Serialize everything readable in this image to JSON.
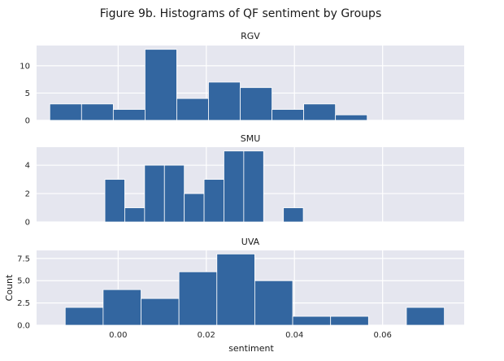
{
  "figure": {
    "title": "Figure 9b. Histograms of QF sentiment by Groups",
    "xlabel": "sentiment",
    "ylabel": "Count"
  },
  "style": {
    "bar_color": "#3366a0",
    "panel_bg": "#e5e6ef",
    "grid_color": "#ffffff"
  },
  "chart_data": [
    {
      "type": "bar",
      "subtitle": "RGV",
      "xlim": [
        -0.0185,
        0.0785
      ],
      "ylim": [
        0,
        13.7
      ],
      "yticks": [
        0,
        5,
        10
      ],
      "ytick_labels": [
        "0",
        "5",
        "10"
      ],
      "bins": [
        {
          "x0": -0.0155,
          "x1": -0.0083,
          "count": 3
        },
        {
          "x0": -0.0083,
          "x1": -0.0011,
          "count": 3
        },
        {
          "x0": -0.0011,
          "x1": 0.0061,
          "count": 2
        },
        {
          "x0": 0.0061,
          "x1": 0.0133,
          "count": 13
        },
        {
          "x0": 0.0133,
          "x1": 0.0205,
          "count": 4
        },
        {
          "x0": 0.0205,
          "x1": 0.0277,
          "count": 7
        },
        {
          "x0": 0.0277,
          "x1": 0.0349,
          "count": 6
        },
        {
          "x0": 0.0349,
          "x1": 0.0421,
          "count": 2
        },
        {
          "x0": 0.0421,
          "x1": 0.0493,
          "count": 3
        },
        {
          "x0": 0.0493,
          "x1": 0.0565,
          "count": 1
        }
      ]
    },
    {
      "type": "bar",
      "subtitle": "SMU",
      "xlim": [
        -0.0185,
        0.0785
      ],
      "ylim": [
        0,
        5.27
      ],
      "yticks": [
        0,
        2,
        4
      ],
      "ytick_labels": [
        "0",
        "2",
        "4"
      ],
      "bins": [
        {
          "x0": -0.003,
          "x1": 0.0015,
          "count": 3
        },
        {
          "x0": 0.0015,
          "x1": 0.006,
          "count": 1
        },
        {
          "x0": 0.006,
          "x1": 0.0105,
          "count": 4
        },
        {
          "x0": 0.0105,
          "x1": 0.015,
          "count": 4
        },
        {
          "x0": 0.015,
          "x1": 0.0195,
          "count": 2
        },
        {
          "x0": 0.0195,
          "x1": 0.024,
          "count": 3
        },
        {
          "x0": 0.024,
          "x1": 0.0285,
          "count": 5
        },
        {
          "x0": 0.0285,
          "x1": 0.033,
          "count": 5
        },
        {
          "x0": 0.0375,
          "x1": 0.042,
          "count": 1
        }
      ]
    },
    {
      "type": "bar",
      "subtitle": "UVA",
      "xlim": [
        -0.0185,
        0.0785
      ],
      "ylim": [
        0,
        8.4
      ],
      "yticks": [
        0,
        2.5,
        5,
        7.5
      ],
      "ytick_labels": [
        "0.0",
        "2.5",
        "5.0",
        "7.5"
      ],
      "xticks": [
        0,
        0.02,
        0.04,
        0.06
      ],
      "xtick_labels": [
        "0.00",
        "0.02",
        "0.04",
        "0.06"
      ],
      "bins": [
        {
          "x0": -0.012,
          "x1": -0.0034,
          "count": 2
        },
        {
          "x0": -0.0034,
          "x1": 0.0052,
          "count": 4
        },
        {
          "x0": 0.0052,
          "x1": 0.0138,
          "count": 3
        },
        {
          "x0": 0.0138,
          "x1": 0.0224,
          "count": 6
        },
        {
          "x0": 0.0224,
          "x1": 0.031,
          "count": 8
        },
        {
          "x0": 0.031,
          "x1": 0.0396,
          "count": 5
        },
        {
          "x0": 0.0396,
          "x1": 0.0482,
          "count": 1
        },
        {
          "x0": 0.0482,
          "x1": 0.0568,
          "count": 1
        },
        {
          "x0": 0.0654,
          "x1": 0.074,
          "count": 2
        }
      ]
    }
  ]
}
